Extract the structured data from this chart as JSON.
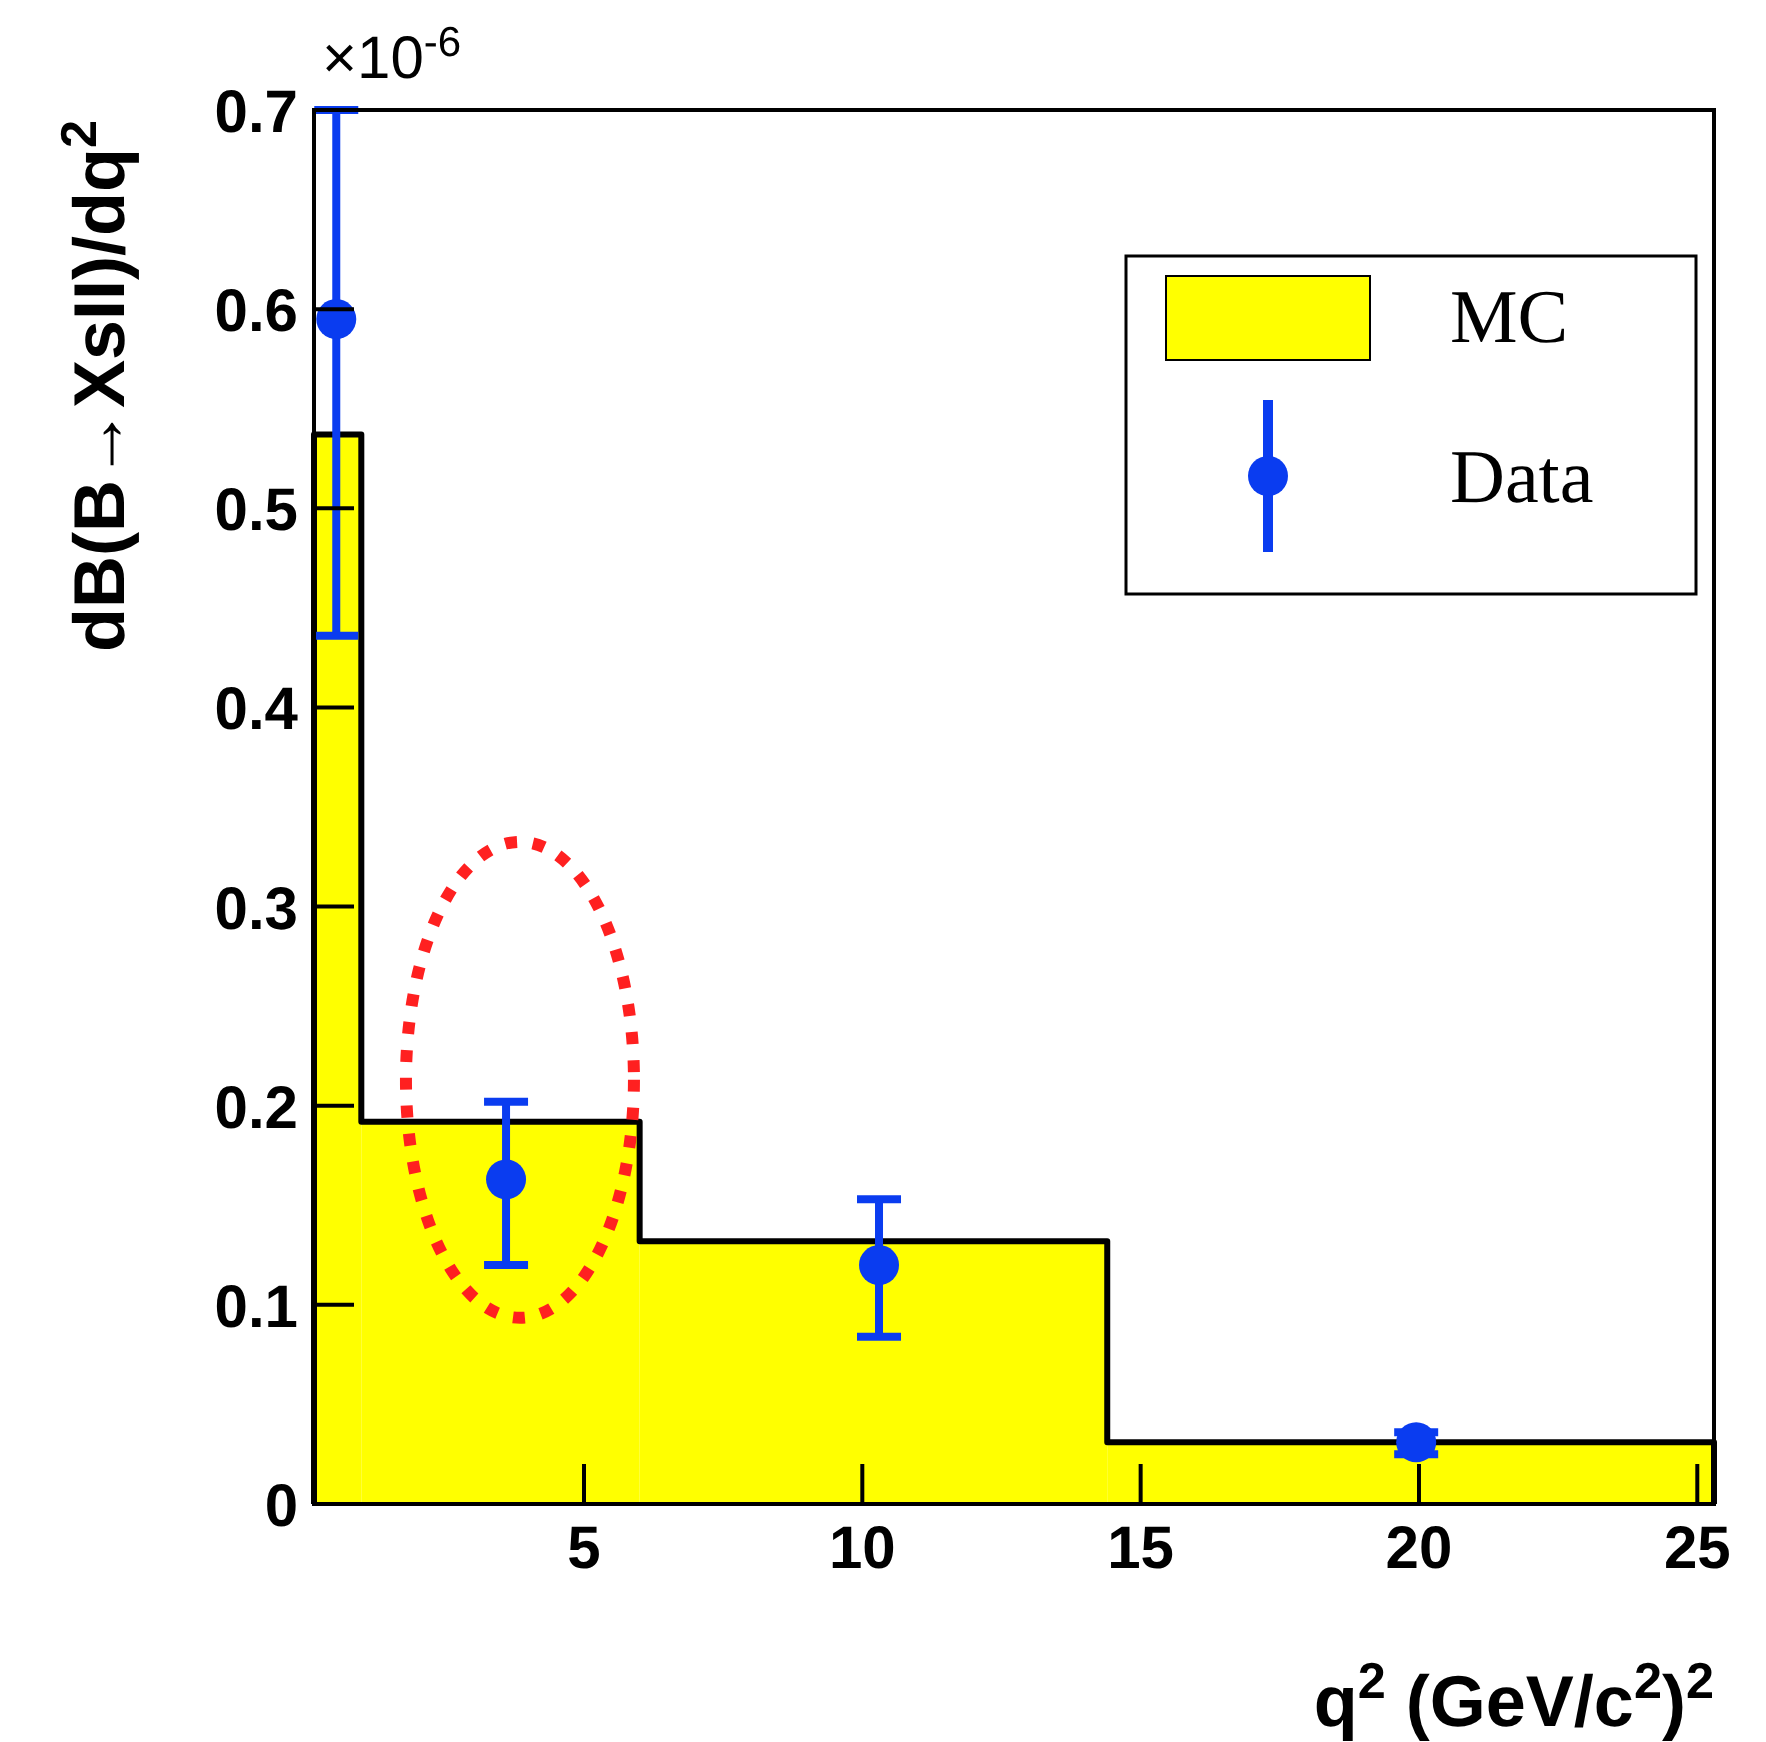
{
  "chart_data": {
    "type": "histogram",
    "xlabel": "q$^{2}$ (GeV/c$^{2}$)$^{2}$",
    "ylabel": "dB(B→XsII)/dq$^{2}$",
    "annotations": [
      "×10$^{-6}$"
    ],
    "xlim": [
      0.15,
      25.3
    ],
    "xticks": [
      5,
      10,
      15,
      20,
      25
    ],
    "ylim": [
      0,
      0.7
    ],
    "yticks": [
      0,
      0.1,
      0.2,
      0.3,
      0.4,
      0.5,
      0.6,
      0.7
    ],
    "grid": false,
    "legend": "top right",
    "marker": "circle",
    "series": [
      {
        "name": "MC",
        "color": "#ffff00",
        "bins": [
          0.15,
          1.0,
          6.0,
          14.4,
          25.3
        ],
        "values": [
          0.537,
          0.192,
          0.132,
          0.031
        ]
      },
      {
        "name": "Data",
        "type": "scatter",
        "color": "#0a3cf0",
        "x": [
          0.55,
          3.6,
          10.3,
          19.95
        ],
        "values": [
          0.595,
          0.163,
          0.12,
          0.031
        ],
        "errors": [
          [
            0.436,
            0.7
          ],
          [
            0.12,
            0.202
          ],
          [
            0.084,
            0.153
          ],
          [
            0.025,
            0.036
          ]
        ]
      }
    ]
  }
}
